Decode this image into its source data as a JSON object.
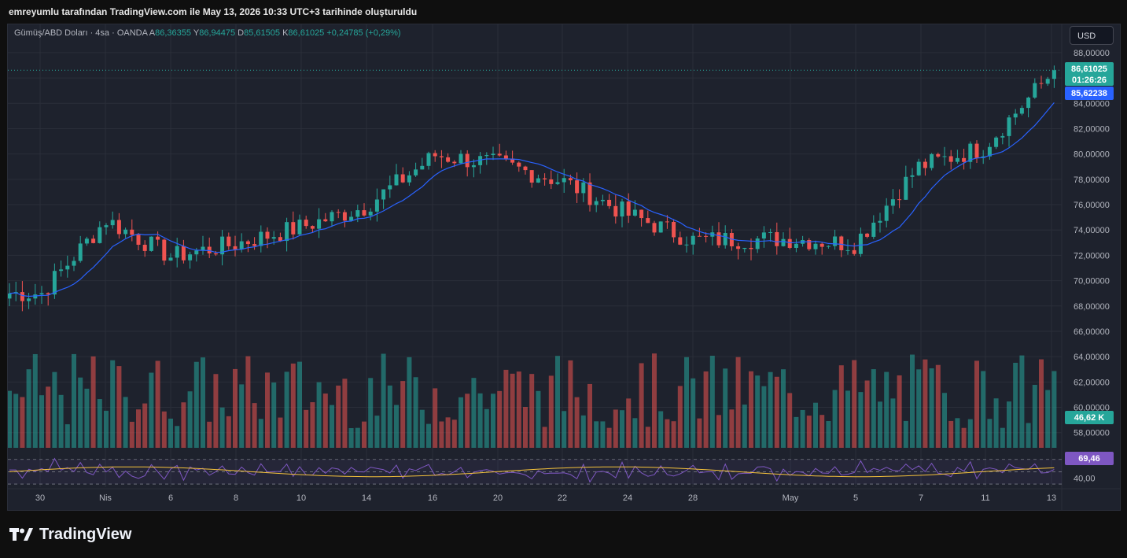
{
  "caption": "emreyumlu tarafından TradingView.com ile May 13, 2026 10:33 UTC+3 tarihinde oluşturuldu",
  "brand": "TradingView",
  "legend": {
    "symbol": "Gümüş/ABD Doları · 4sa · OANDA",
    "open_label": "A",
    "open": "86,36355",
    "high_label": "Y",
    "high": "86,94475",
    "low_label": "D",
    "low": "85,61505",
    "close_label": "K",
    "close": "86,61025",
    "change": "+0,24785 (+0,29%)"
  },
  "currency": "USD",
  "colors": {
    "up": "#26a69a",
    "down": "#ef5350",
    "ma": "#2962ff",
    "rsi": "#7e57c2",
    "rsi_ma": "#f5c23b",
    "background": "#1e222d",
    "grid": "#2a2e39"
  },
  "chart_data": {
    "type": "candlestick",
    "symbol": "Gümüş/ABD Doları",
    "interval": "4sa",
    "y_ticks": [
      "88,00000",
      "86,00000",
      "84,00000",
      "82,00000",
      "80,00000",
      "78,00000",
      "76,00000",
      "74,00000",
      "72,00000",
      "70,00000",
      "68,00000",
      "66,00000",
      "64,00000",
      "62,00000",
      "60,00000",
      "58,00000"
    ],
    "ylim": [
      56.8,
      88.8
    ],
    "x_ticks": [
      "30",
      "Nis",
      "6",
      "8",
      "10",
      "14",
      "16",
      "20",
      "22",
      "24",
      "28",
      "May",
      "5",
      "7",
      "11",
      "13"
    ],
    "price_label": {
      "value": "86,61025",
      "countdown": "01:26:26"
    },
    "ma_label": "85,62238",
    "volume_label": "46,62 K",
    "rsi": {
      "value_label": "69,46",
      "tick": "40,00",
      "ylim": [
        25,
        85
      ],
      "bands": [
        70,
        50,
        30
      ]
    },
    "anchors": [
      {
        "x": "30",
        "close": 69.0
      },
      {
        "x": "Nis",
        "close": 74.8
      },
      {
        "x": "6",
        "close": 71.9
      },
      {
        "x": "8",
        "close": 72.9
      },
      {
        "x": "10",
        "close": 74.2
      },
      {
        "x": "14",
        "close": 75.8
      },
      {
        "x": "16",
        "close": 79.9
      },
      {
        "x": "20",
        "close": 79.2
      },
      {
        "x": "22",
        "close": 77.8
      },
      {
        "x": "24",
        "close": 75.2
      },
      {
        "x": "28",
        "close": 73.2
      },
      {
        "x": "May",
        "close": 73.3
      },
      {
        "x": "5",
        "close": 72.9
      },
      {
        "x": "7",
        "close": 79.0
      },
      {
        "x": "11",
        "close": 80.5
      },
      {
        "x": "13",
        "close": 86.61
      }
    ]
  }
}
